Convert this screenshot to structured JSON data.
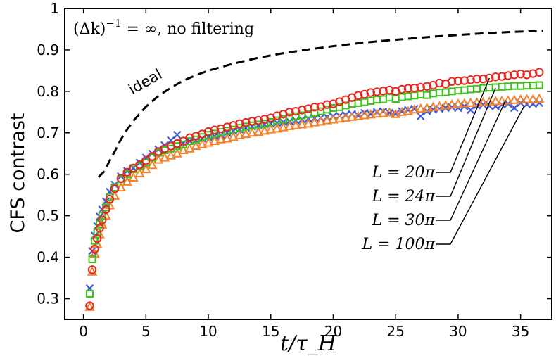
{
  "chart_data": {
    "type": "scatter",
    "title": "(Δk)⁻¹ = ∞,  no filtering",
    "xlabel": "t/τ_H",
    "ylabel": "CFS contrast",
    "xlim": [
      -1.5,
      37.5
    ],
    "ylim": [
      0.25,
      1.0
    ],
    "xticks": [
      0,
      5,
      10,
      15,
      20,
      25,
      30,
      35
    ],
    "yticks": [
      0.3,
      0.4,
      0.5,
      0.6,
      0.7,
      0.8,
      0.9,
      1.0
    ],
    "ytick_labels": [
      "0.3",
      "0.4",
      "0.5",
      "0.6",
      "0.7",
      "0.8",
      "0.9",
      "1"
    ],
    "grid": false,
    "annotations": {
      "ideal_label": "ideal",
      "title_text": "(Δk)",
      "title_exp": "−1",
      "title_rest": " = ∞,  no filtering"
    },
    "ideal_curve": {
      "name": "ideal",
      "style": "dashed",
      "color": "#000000",
      "x": [
        1.2,
        1.6,
        2.0,
        2.5,
        3.0,
        3.5,
        4.0,
        5.0,
        6.0,
        7.0,
        8.0,
        9.0,
        10.0,
        12.0,
        14.0,
        16.0,
        18.0,
        20.0,
        22.0,
        24.0,
        26.0,
        28.0,
        30.0,
        32.0,
        34.0,
        36.8
      ],
      "y": [
        0.593,
        0.605,
        0.627,
        0.655,
        0.684,
        0.708,
        0.729,
        0.763,
        0.789,
        0.809,
        0.826,
        0.839,
        0.85,
        0.867,
        0.881,
        0.892,
        0.901,
        0.909,
        0.916,
        0.922,
        0.927,
        0.932,
        0.936,
        0.94,
        0.943,
        0.946
      ]
    },
    "series": [
      {
        "name": "L = 20π",
        "label_base": "L = 20",
        "marker": "circle",
        "color": "#e8261e",
        "anchor": [
          32.5,
          0.832
        ],
        "x": [
          0.5,
          0.7,
          0.9,
          1.1,
          1.3,
          1.5,
          1.8,
          2.1,
          2.5,
          3.0,
          3.5,
          4.0,
          4.5,
          5.0,
          5.5,
          6.0,
          6.5,
          7.0,
          7.5,
          8.0,
          8.5,
          9.0,
          9.5,
          10.0,
          10.5,
          11.0,
          11.5,
          12.0,
          12.5,
          13.0,
          13.5,
          14.0,
          14.5,
          15.0,
          15.5,
          16.0,
          16.5,
          17.0,
          17.5,
          18.0,
          18.5,
          19.0,
          19.5,
          20.0,
          20.5,
          21.0,
          21.5,
          22.0,
          22.5,
          23.0,
          23.5,
          24.0,
          24.5,
          25.0,
          25.5,
          26.0,
          26.5,
          27.0,
          27.5,
          28.0,
          28.5,
          29.0,
          29.5,
          30.0,
          30.5,
          31.0,
          31.5,
          32.0,
          32.5,
          33.0,
          33.5,
          34.0,
          34.5,
          35.0,
          35.5,
          36.0,
          36.5
        ],
        "y": [
          0.283,
          0.37,
          0.42,
          0.445,
          0.47,
          0.49,
          0.515,
          0.54,
          0.565,
          0.59,
          0.605,
          0.615,
          0.623,
          0.633,
          0.643,
          0.655,
          0.662,
          0.668,
          0.674,
          0.68,
          0.688,
          0.692,
          0.697,
          0.703,
          0.707,
          0.71,
          0.714,
          0.718,
          0.722,
          0.725,
          0.728,
          0.73,
          0.733,
          0.736,
          0.741,
          0.745,
          0.75,
          0.752,
          0.755,
          0.758,
          0.762,
          0.763,
          0.768,
          0.77,
          0.775,
          0.78,
          0.785,
          0.79,
          0.793,
          0.797,
          0.799,
          0.801,
          0.803,
          0.8,
          0.805,
          0.807,
          0.808,
          0.81,
          0.812,
          0.815,
          0.82,
          0.818,
          0.824,
          0.825,
          0.826,
          0.828,
          0.83,
          0.83,
          0.832,
          0.835,
          0.836,
          0.838,
          0.84,
          0.842,
          0.84,
          0.843,
          0.846
        ]
      },
      {
        "name": "L = 24π",
        "label_base": "L = 24",
        "marker": "square",
        "color": "#3ec11d",
        "anchor": [
          33.0,
          0.808
        ],
        "x": [
          0.5,
          0.7,
          0.9,
          1.1,
          1.3,
          1.5,
          1.8,
          2.1,
          2.5,
          3.0,
          3.5,
          4.0,
          4.5,
          5.0,
          5.5,
          6.0,
          6.5,
          7.0,
          7.5,
          8.0,
          8.5,
          9.0,
          9.5,
          10.0,
          10.5,
          11.0,
          11.5,
          12.0,
          12.5,
          13.0,
          13.5,
          14.0,
          14.5,
          15.0,
          15.5,
          16.0,
          16.5,
          17.0,
          17.5,
          18.0,
          18.5,
          19.0,
          19.5,
          20.0,
          20.5,
          21.0,
          21.5,
          22.0,
          22.5,
          23.0,
          23.5,
          24.0,
          24.5,
          25.0,
          25.5,
          26.0,
          26.5,
          27.0,
          27.5,
          28.0,
          28.5,
          29.0,
          29.5,
          30.0,
          30.5,
          31.0,
          31.5,
          32.0,
          32.5,
          33.0,
          33.5,
          34.0,
          34.5,
          35.0,
          35.5,
          36.0,
          36.5
        ],
        "y": [
          0.312,
          0.395,
          0.44,
          0.46,
          0.48,
          0.5,
          0.52,
          0.545,
          0.568,
          0.588,
          0.6,
          0.612,
          0.62,
          0.628,
          0.64,
          0.652,
          0.658,
          0.662,
          0.668,
          0.672,
          0.68,
          0.684,
          0.69,
          0.695,
          0.698,
          0.702,
          0.705,
          0.708,
          0.712,
          0.715,
          0.718,
          0.72,
          0.722,
          0.726,
          0.73,
          0.733,
          0.737,
          0.74,
          0.742,
          0.745,
          0.748,
          0.752,
          0.756,
          0.76,
          0.762,
          0.766,
          0.77,
          0.772,
          0.774,
          0.777,
          0.78,
          0.781,
          0.785,
          0.782,
          0.786,
          0.788,
          0.79,
          0.792,
          0.791,
          0.795,
          0.797,
          0.798,
          0.8,
          0.802,
          0.803,
          0.805,
          0.806,
          0.808,
          0.809,
          0.81,
          0.811,
          0.812,
          0.813,
          0.813,
          0.814,
          0.814,
          0.815
        ]
      },
      {
        "name": "L = 30π",
        "label_base": "L = 30",
        "marker": "triangle",
        "color": "#f4822a",
        "anchor": [
          33.8,
          0.778
        ],
        "x": [
          0.5,
          0.7,
          0.9,
          1.1,
          1.3,
          1.5,
          1.8,
          2.1,
          2.5,
          3.0,
          3.5,
          4.0,
          4.5,
          5.0,
          5.5,
          6.0,
          6.5,
          7.0,
          7.5,
          8.0,
          8.5,
          9.0,
          9.5,
          10.0,
          10.5,
          11.0,
          11.5,
          12.0,
          12.5,
          13.0,
          13.5,
          14.0,
          14.5,
          15.0,
          15.5,
          16.0,
          16.5,
          17.0,
          17.5,
          18.0,
          18.5,
          19.0,
          19.5,
          20.0,
          20.5,
          21.0,
          21.5,
          22.0,
          22.5,
          23.0,
          23.5,
          24.0,
          24.5,
          25.0,
          25.5,
          26.0,
          26.5,
          27.0,
          27.5,
          28.0,
          28.5,
          29.0,
          29.5,
          30.0,
          30.5,
          31.0,
          31.5,
          32.0,
          32.5,
          33.0,
          33.5,
          34.0,
          34.5,
          35.0,
          35.5,
          36.0,
          36.5
        ],
        "y": [
          0.28,
          0.365,
          0.408,
          0.432,
          0.455,
          0.478,
          0.5,
          0.525,
          0.548,
          0.568,
          0.582,
          0.592,
          0.602,
          0.612,
          0.622,
          0.635,
          0.64,
          0.645,
          0.65,
          0.658,
          0.662,
          0.668,
          0.672,
          0.676,
          0.68,
          0.684,
          0.686,
          0.69,
          0.694,
          0.697,
          0.7,
          0.702,
          0.705,
          0.708,
          0.71,
          0.713,
          0.716,
          0.718,
          0.72,
          0.722,
          0.725,
          0.727,
          0.73,
          0.732,
          0.734,
          0.736,
          0.738,
          0.74,
          0.742,
          0.744,
          0.746,
          0.747,
          0.749,
          0.745,
          0.75,
          0.752,
          0.756,
          0.758,
          0.76,
          0.762,
          0.764,
          0.766,
          0.768,
          0.77,
          0.771,
          0.772,
          0.773,
          0.774,
          0.775,
          0.776,
          0.777,
          0.778,
          0.779,
          0.78,
          0.781,
          0.781,
          0.782
        ]
      },
      {
        "name": "L = 100π",
        "label_base": "L = 100",
        "marker": "cross",
        "color": "#3d5bdc",
        "anchor": [
          35.3,
          0.765
        ],
        "x": [
          0.5,
          0.7,
          0.9,
          1.1,
          1.3,
          1.5,
          1.8,
          2.1,
          2.5,
          3.0,
          3.5,
          4.0,
          4.5,
          5.0,
          5.5,
          6.0,
          6.5,
          7.0,
          7.5,
          8.0,
          8.5,
          9.0,
          9.5,
          10.0,
          10.5,
          11.0,
          11.5,
          12.0,
          12.5,
          13.0,
          13.5,
          14.0,
          14.5,
          15.0,
          15.5,
          16.0,
          16.5,
          17.0,
          17.5,
          18.0,
          18.5,
          19.0,
          19.5,
          20.0,
          20.5,
          21.0,
          21.5,
          22.0,
          22.5,
          23.0,
          23.5,
          24.0,
          24.5,
          25.0,
          25.5,
          26.0,
          26.5,
          27.0,
          27.5,
          28.0,
          28.5,
          29.0,
          29.5,
          30.0,
          30.5,
          31.0,
          31.5,
          32.0,
          32.5,
          33.0,
          33.5,
          34.0,
          34.5,
          35.0,
          35.5,
          36.0,
          36.5
        ],
        "y": [
          0.325,
          0.415,
          0.452,
          0.475,
          0.498,
          0.515,
          0.535,
          0.558,
          0.575,
          0.595,
          0.608,
          0.615,
          0.628,
          0.64,
          0.65,
          0.66,
          0.67,
          0.682,
          0.695,
          0.675,
          0.68,
          0.682,
          0.686,
          0.69,
          0.692,
          0.695,
          0.7,
          0.704,
          0.708,
          0.712,
          0.715,
          0.718,
          0.72,
          0.722,
          0.724,
          0.726,
          0.728,
          0.73,
          0.732,
          0.734,
          0.735,
          0.736,
          0.738,
          0.74,
          0.741,
          0.743,
          0.745,
          0.742,
          0.748,
          0.745,
          0.75,
          0.752,
          0.748,
          0.746,
          0.752,
          0.755,
          0.758,
          0.74,
          0.752,
          0.756,
          0.758,
          0.76,
          0.762,
          0.76,
          0.764,
          0.755,
          0.766,
          0.768,
          0.765,
          0.764,
          0.768,
          0.77,
          0.76,
          0.772,
          0.769,
          0.77,
          0.772
        ]
      }
    ]
  }
}
